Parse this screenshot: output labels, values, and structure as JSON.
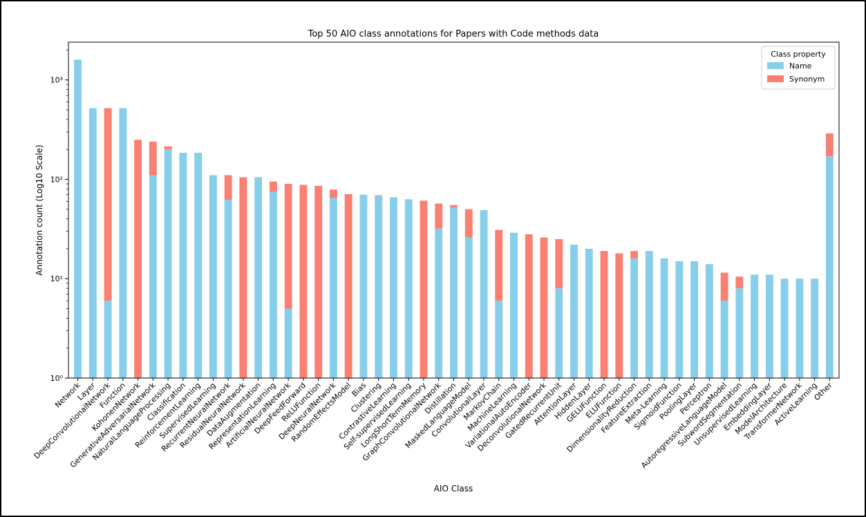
{
  "chart_data": {
    "type": "bar",
    "stacked": true,
    "title": "Top 50 AIO class annotations for Papers with Code methods data",
    "xlabel": "AIO Class",
    "ylabel": "Annotation count (Log10 Scale)",
    "yscale": "log",
    "ylim": [
      1,
      2400
    ],
    "yticks": [
      {
        "value": 1,
        "label": "10⁰"
      },
      {
        "value": 10,
        "label": "10¹"
      },
      {
        "value": 100,
        "label": "10²"
      },
      {
        "value": 1000,
        "label": "10³"
      }
    ],
    "grid": false,
    "legend": {
      "title": "Class property",
      "placement": "top-right"
    },
    "categories": [
      "Network",
      "Layer",
      "DeepConvolutionalNetwork",
      "Function",
      "KohonenNetwork",
      "GenerativeAdversarialNetwork",
      "NaturalLanguageProcessing",
      "Classification",
      "ReinforcementLearning",
      "SupervisedLearning",
      "RecurrentNeuralNetwork",
      "ResidualNeuralNetwork",
      "DataAugmentation",
      "RepresentationLearning",
      "ArtificialNeuralNetwork",
      "DeepFeedForward",
      "ReLUFunction",
      "DeepNeuralNetwork",
      "RandomEffectsModel",
      "Bias",
      "Clustering",
      "ContrastiveLearning",
      "Self-supervisedLearning",
      "LongShortTermMemory",
      "GraphConvolutionalNetwork",
      "Distillation",
      "MaskedLanguageModel",
      "ConvolutionalLayer",
      "MarkovChain",
      "MachineLearning",
      "VariationalAutoEncoder",
      "DeconvolutionalNetwork",
      "GatedRecurrentUnit",
      "AttentionLayer",
      "HiddenLayer",
      "GELUFunction",
      "ELUFunction",
      "DimensionalityReduction",
      "FeatureExtraction",
      "Meta-Learning",
      "SigmoidFunction",
      "PoolingLayer",
      "Perceptron",
      "AutoregressiveLanguageModel",
      "SubwordSegmentation",
      "UnsupervisedLearning",
      "EmbeddingLayer",
      "ModelArchitecture",
      "TransformerNetwork",
      "ActiveLearning",
      "Other"
    ],
    "series": [
      {
        "name": "Name",
        "color": "#87ceeb",
        "values": [
          1600,
          520,
          6,
          520,
          0,
          110,
          200,
          185,
          185,
          110,
          62,
          0,
          105,
          75,
          5,
          0,
          0,
          65,
          0,
          70,
          68,
          66,
          63,
          0,
          32,
          52,
          26,
          49,
          6,
          29,
          0,
          0,
          8,
          22,
          20,
          0,
          0,
          16,
          19,
          16,
          15,
          15,
          14,
          6,
          8,
          11,
          11,
          10,
          10,
          10,
          170
        ]
      },
      {
        "name": "Synonym",
        "color": "#fa8072",
        "values": [
          0,
          0,
          514,
          0,
          250,
          130,
          15,
          0,
          0,
          0,
          48,
          105,
          0,
          20,
          85,
          88,
          86,
          14,
          71,
          0,
          1,
          0,
          0,
          61,
          25,
          3,
          24,
          0,
          25,
          0,
          28,
          26,
          17,
          0,
          0,
          19,
          18,
          3,
          0,
          0,
          0,
          0,
          0,
          5.5,
          2.5,
          0,
          0,
          0,
          0,
          0,
          120
        ]
      }
    ]
  }
}
